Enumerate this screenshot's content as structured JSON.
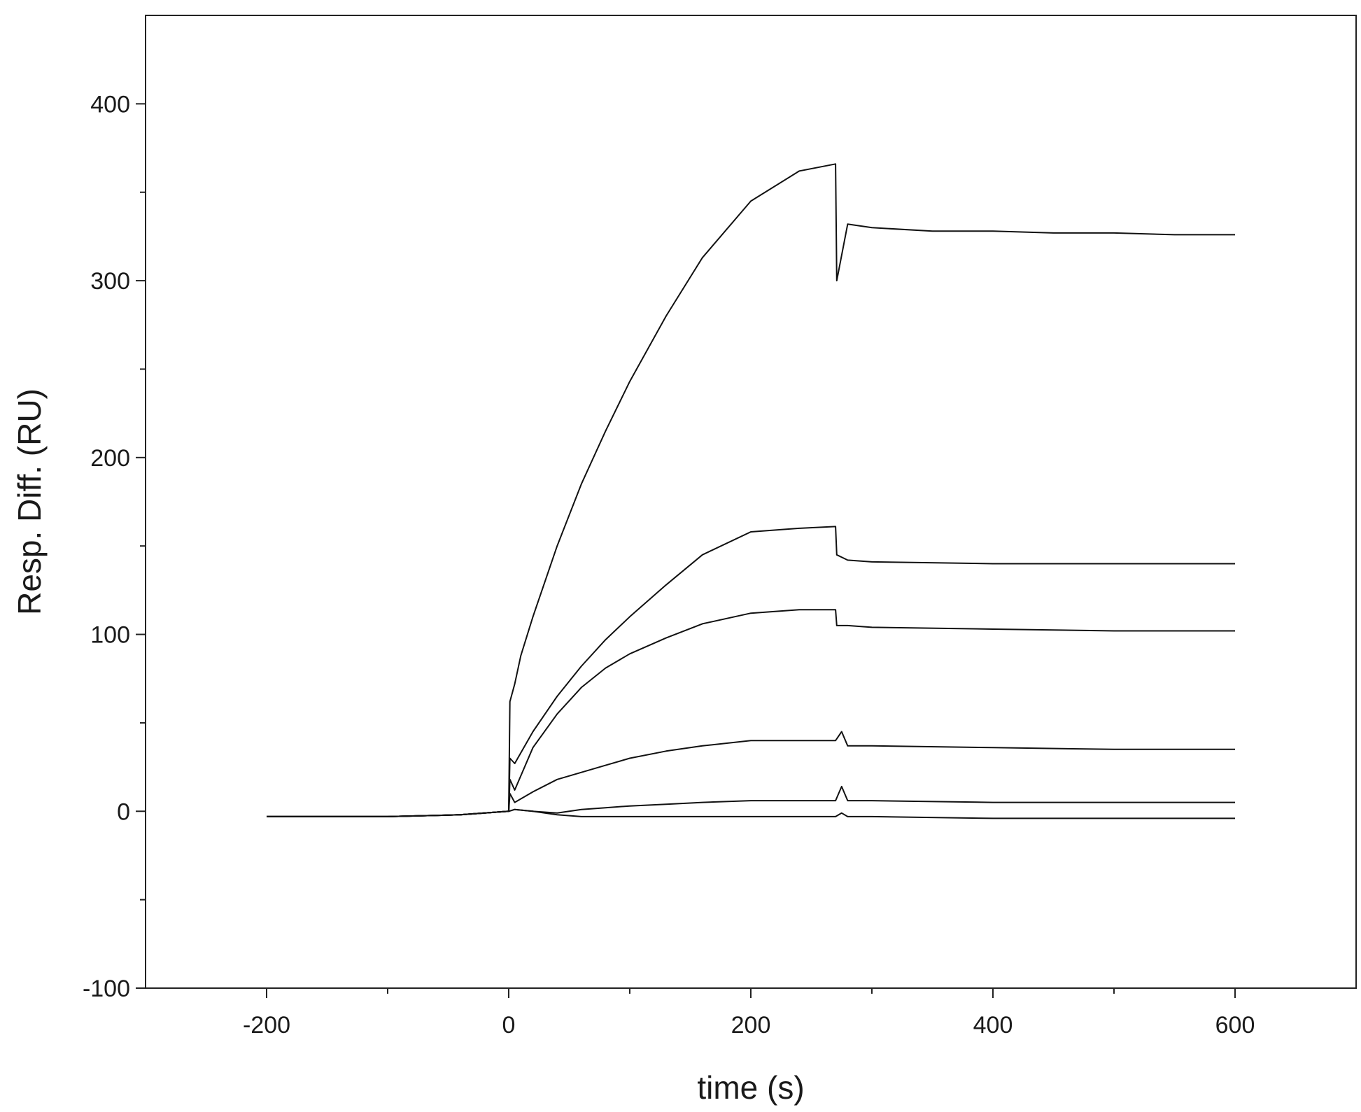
{
  "chart_data": {
    "type": "line",
    "title": "",
    "xlabel": "time (s)",
    "ylabel": "Resp. Diff. (RU)",
    "xlim": [
      -300,
      700
    ],
    "ylim": [
      -100,
      450
    ],
    "x_ticks_major": [
      -200,
      0,
      200,
      400,
      600
    ],
    "x_ticks_minor": [
      -100,
      100,
      300,
      500
    ],
    "y_ticks_major": [
      -100,
      0,
      100,
      200,
      300,
      400
    ],
    "y_ticks_minor": [
      -50,
      50,
      150,
      250,
      350
    ],
    "grid": false,
    "legend": "none",
    "injection_start": 0,
    "injection_end": 270,
    "series": [
      {
        "x": [
          -200,
          -100,
          -40,
          0,
          1,
          5,
          10,
          20,
          40,
          60,
          80,
          100,
          130,
          160,
          200,
          240,
          270,
          271,
          280,
          300,
          350,
          400,
          450,
          500,
          550,
          600
        ],
        "y": [
          -3,
          -3,
          -2,
          0,
          62,
          72,
          88,
          110,
          150,
          185,
          215,
          243,
          280,
          313,
          345,
          362,
          366,
          300,
          332,
          330,
          328,
          328,
          327,
          327,
          326,
          326
        ]
      },
      {
        "x": [
          -200,
          -100,
          -40,
          0,
          1,
          5,
          20,
          40,
          60,
          80,
          100,
          130,
          160,
          200,
          240,
          270,
          271,
          280,
          300,
          400,
          500,
          600
        ],
        "y": [
          -3,
          -3,
          -2,
          0,
          30,
          27,
          45,
          65,
          82,
          97,
          110,
          128,
          145,
          158,
          160,
          161,
          145,
          142,
          141,
          140,
          140,
          140
        ]
      },
      {
        "x": [
          -200,
          -100,
          -40,
          0,
          1,
          5,
          20,
          40,
          60,
          80,
          100,
          130,
          160,
          200,
          240,
          270,
          271,
          280,
          300,
          400,
          500,
          600
        ],
        "y": [
          -3,
          -3,
          -2,
          0,
          18,
          12,
          36,
          55,
          70,
          81,
          89,
          98,
          106,
          112,
          114,
          114,
          105,
          105,
          104,
          103,
          102,
          102
        ]
      },
      {
        "x": [
          -200,
          -100,
          -40,
          0,
          1,
          5,
          20,
          40,
          60,
          80,
          100,
          130,
          160,
          200,
          240,
          270,
          275,
          280,
          300,
          400,
          500,
          600
        ],
        "y": [
          -3,
          -3,
          -2,
          0,
          10,
          5,
          11,
          18,
          22,
          26,
          30,
          34,
          37,
          40,
          40,
          40,
          45,
          37,
          37,
          36,
          35,
          35
        ]
      },
      {
        "x": [
          -200,
          -100,
          -40,
          0,
          5,
          20,
          40,
          60,
          80,
          100,
          130,
          160,
          200,
          240,
          270,
          275,
          280,
          300,
          400,
          500,
          600
        ],
        "y": [
          -3,
          -3,
          -2,
          0,
          1,
          0,
          -1,
          1,
          2,
          3,
          4,
          5,
          6,
          6,
          6,
          14,
          6,
          6,
          5,
          5,
          5
        ]
      },
      {
        "x": [
          -200,
          -100,
          -40,
          0,
          5,
          20,
          40,
          60,
          80,
          100,
          130,
          160,
          200,
          240,
          270,
          275,
          280,
          300,
          400,
          500,
          600
        ],
        "y": [
          -3,
          -3,
          -2,
          0,
          1,
          0,
          -2,
          -3,
          -3,
          -3,
          -3,
          -3,
          -3,
          -3,
          -3,
          -1,
          -3,
          -3,
          -4,
          -4,
          -4
        ]
      }
    ]
  }
}
